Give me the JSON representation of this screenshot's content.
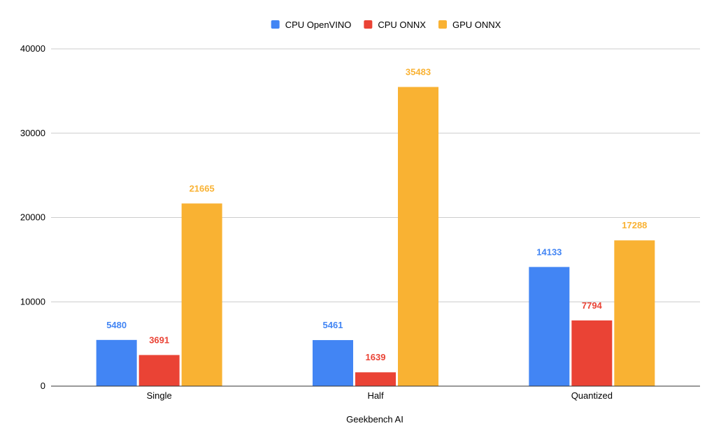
{
  "chart_data": {
    "type": "bar",
    "title": "",
    "xlabel": "Geekbench AI",
    "ylabel": "",
    "ylim": [
      0,
      40000
    ],
    "yticks": [
      0,
      10000,
      20000,
      30000,
      40000
    ],
    "grid": true,
    "legend_position": "top-center",
    "categories": [
      "Single",
      "Half",
      "Quantized"
    ],
    "series": [
      {
        "name": "CPU OpenVINO",
        "color": "#4285F4",
        "values": [
          5480,
          5461,
          14133
        ]
      },
      {
        "name": "CPU ONNX",
        "color": "#EA4335",
        "values": [
          3691,
          1639,
          7794
        ]
      },
      {
        "name": "GPU ONNX",
        "color": "#F9B233",
        "values": [
          21665,
          35483,
          17288
        ]
      }
    ]
  }
}
